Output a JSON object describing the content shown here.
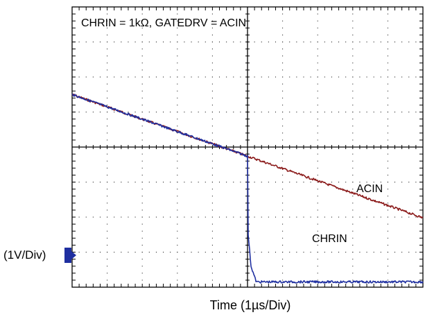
{
  "chart_data": {
    "type": "line",
    "title": "CHRIN = 1kΩ, GATEDRV = ACIN",
    "xlabel": "Time (1µs/Div)",
    "ylabel": "(1V/Div)",
    "x_divisions": 10,
    "y_divisions": 8,
    "grid": true,
    "series": [
      {
        "name": "ACIN",
        "color": "#8b1a1a",
        "x": [
          0,
          10
        ],
        "y": [
          5.5,
          1.98
        ]
      },
      {
        "name": "CHRIN",
        "color": "#1f2fa0",
        "x": [
          0,
          5.0,
          5.02,
          5.1,
          5.25,
          10
        ],
        "y": [
          5.5,
          3.74,
          1.5,
          0.6,
          0.15,
          0.15
        ]
      }
    ],
    "ground_marker": "arrow-right-icon"
  }
}
